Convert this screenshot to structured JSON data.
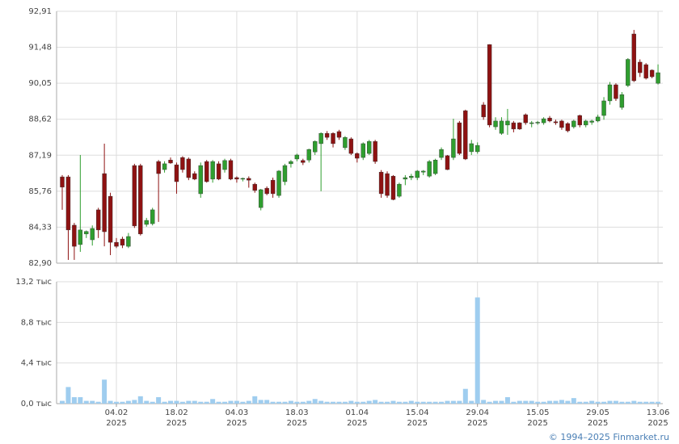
{
  "chart_data": [
    {
      "type": "candlestick",
      "up_color": "#2f9e2f",
      "down_color": "#8e1212",
      "grid": true,
      "ylim": [
        82.9,
        92.91
      ],
      "yticks": [
        {
          "value": 82.9,
          "label": "82,90"
        },
        {
          "value": 84.33,
          "label": "84,33"
        },
        {
          "value": 85.76,
          "label": "85,76"
        },
        {
          "value": 87.19,
          "label": "87,19"
        },
        {
          "value": 88.62,
          "label": "88,62"
        },
        {
          "value": 90.05,
          "label": "90,05"
        },
        {
          "value": 91.48,
          "label": "91,48"
        },
        {
          "value": 92.91,
          "label": "92,91"
        }
      ],
      "categories": [
        null,
        null,
        null,
        null,
        null,
        null,
        null,
        null,
        null,
        "04.02\n2025",
        null,
        null,
        null,
        null,
        null,
        null,
        null,
        null,
        null,
        "18.02\n2025",
        null,
        null,
        null,
        null,
        null,
        null,
        null,
        null,
        null,
        "04.03\n2025",
        null,
        null,
        null,
        null,
        null,
        null,
        null,
        null,
        null,
        "18.03\n2025",
        null,
        null,
        null,
        null,
        null,
        null,
        null,
        null,
        null,
        "01.04\n2025",
        null,
        null,
        null,
        null,
        null,
        null,
        null,
        null,
        null,
        "15.04\n2025",
        null,
        null,
        null,
        null,
        null,
        null,
        null,
        null,
        null,
        "29.04\n2025",
        null,
        null,
        null,
        null,
        null,
        null,
        null,
        null,
        null,
        "15.05\n2025",
        null,
        null,
        null,
        null,
        null,
        null,
        null,
        null,
        null,
        "29.05\n2025",
        null,
        null,
        null,
        null,
        null,
        null,
        null,
        null,
        null,
        "13.06\n2025"
      ],
      "open": [
        86.33,
        86.33,
        84.41,
        83.64,
        84.06,
        83.83,
        85.02,
        86.46,
        85.56,
        83.73,
        83.86,
        83.57,
        86.78,
        86.78,
        84.44,
        84.47,
        86.94,
        86.62,
        87.0,
        86.81,
        87.1,
        87.04,
        86.46,
        85.66,
        86.94,
        86.24,
        86.85,
        86.62,
        86.98,
        86.3,
        86.24,
        86.27,
        86.04,
        85.11,
        85.88,
        86.2,
        85.59,
        86.14,
        86.85,
        87.04,
        86.98,
        87.0,
        87.32,
        87.65,
        88.06,
        88.06,
        88.13,
        87.49,
        87.84,
        87.26,
        87.1,
        87.26,
        87.74,
        86.52,
        86.46,
        86.36,
        85.56,
        86.24,
        86.3,
        86.3,
        86.52,
        86.36,
        86.46,
        87.1,
        87.17,
        87.1,
        88.48,
        88.96,
        87.33,
        87.33,
        89.19,
        91.59,
        88.32,
        88.06,
        88.39,
        88.48,
        88.48,
        88.8,
        88.45,
        88.48,
        88.48,
        88.67,
        88.52,
        88.55,
        88.45,
        88.32,
        88.77,
        88.39,
        88.5,
        88.55,
        88.77,
        89.35,
        89.99,
        89.09,
        89.96,
        92.01,
        90.89,
        90.79,
        90.57,
        90.05
      ],
      "high": [
        86.4,
        86.4,
        84.5,
        87.2,
        84.2,
        84.4,
        85.1,
        87.65,
        85.7,
        83.9,
        83.95,
        84.1,
        86.85,
        86.85,
        84.7,
        85.1,
        87.0,
        86.95,
        87.1,
        86.9,
        87.15,
        87.1,
        86.55,
        86.9,
        87.0,
        87.0,
        86.95,
        87.05,
        87.05,
        86.35,
        86.3,
        86.35,
        86.1,
        85.85,
        85.95,
        86.3,
        86.6,
        86.85,
        87.0,
        87.25,
        87.05,
        87.45,
        87.78,
        88.1,
        88.15,
        88.1,
        88.2,
        87.95,
        87.9,
        87.3,
        87.7,
        87.8,
        87.8,
        86.6,
        86.55,
        86.4,
        86.1,
        86.4,
        86.45,
        86.6,
        86.6,
        87.0,
        87.05,
        87.5,
        87.2,
        88.64,
        88.55,
        89.0,
        87.8,
        87.7,
        89.3,
        91.6,
        88.7,
        88.7,
        89.03,
        88.55,
        88.5,
        88.85,
        88.55,
        88.55,
        88.7,
        88.75,
        88.6,
        88.6,
        88.5,
        88.6,
        88.8,
        88.6,
        88.6,
        88.8,
        89.5,
        90.1,
        90.05,
        89.7,
        91.05,
        92.17,
        91.0,
        90.85,
        90.6,
        90.8
      ],
      "low": [
        85.02,
        83.03,
        83.03,
        83.35,
        83.9,
        83.6,
        83.9,
        83.57,
        83.22,
        83.5,
        83.5,
        83.5,
        84.3,
        84.0,
        84.35,
        84.4,
        84.54,
        86.5,
        86.85,
        85.66,
        86.5,
        86.2,
        86.2,
        85.5,
        86.1,
        86.1,
        86.2,
        86.5,
        86.2,
        86.1,
        86.15,
        85.9,
        85.7,
        85.0,
        85.6,
        85.5,
        85.5,
        86.0,
        86.7,
        86.95,
        86.8,
        86.9,
        87.2,
        85.76,
        87.8,
        87.5,
        87.8,
        87.4,
        87.2,
        86.9,
        87.0,
        87.2,
        86.85,
        85.5,
        85.5,
        85.4,
        85.5,
        86.0,
        86.2,
        86.2,
        86.4,
        86.3,
        86.4,
        87.0,
        86.6,
        87.0,
        87.2,
        87.0,
        87.2,
        87.25,
        88.6,
        88.3,
        88.2,
        88.0,
        88.0,
        88.1,
        88.2,
        88.4,
        88.3,
        88.4,
        88.4,
        88.5,
        88.4,
        88.2,
        88.1,
        88.25,
        88.3,
        88.3,
        88.4,
        88.5,
        88.6,
        89.2,
        89.35,
        89.0,
        89.9,
        90.1,
        90.3,
        90.2,
        90.25,
        90.0
      ],
      "close": [
        85.92,
        84.22,
        83.57,
        84.22,
        84.16,
        84.28,
        84.22,
        84.15,
        83.73,
        83.57,
        83.61,
        83.96,
        84.38,
        84.06,
        84.6,
        85.02,
        86.46,
        86.85,
        86.88,
        86.14,
        86.62,
        86.3,
        86.24,
        86.78,
        86.14,
        86.94,
        86.24,
        86.98,
        86.24,
        86.24,
        86.27,
        86.2,
        85.79,
        85.82,
        85.66,
        85.66,
        86.56,
        86.78,
        86.94,
        87.2,
        86.9,
        87.42,
        87.74,
        88.06,
        87.9,
        87.65,
        87.9,
        87.9,
        87.26,
        87.07,
        87.65,
        87.74,
        86.94,
        85.66,
        85.59,
        85.43,
        86.04,
        86.3,
        86.36,
        86.56,
        86.56,
        86.94,
        87.0,
        87.42,
        86.62,
        87.84,
        87.26,
        87.04,
        87.65,
        87.58,
        88.71,
        88.39,
        88.55,
        88.55,
        88.55,
        88.23,
        88.23,
        88.48,
        88.48,
        88.5,
        88.64,
        88.55,
        88.48,
        88.29,
        88.16,
        88.55,
        88.39,
        88.55,
        88.55,
        88.71,
        89.35,
        89.99,
        89.44,
        89.6,
        91.0,
        90.15,
        90.47,
        90.25,
        90.31,
        90.47
      ]
    },
    {
      "type": "bar",
      "color": "#9fcdef",
      "grid": true,
      "ylim": [
        0,
        13.2
      ],
      "yticks": [
        {
          "value": 0,
          "label": "0,0 тыс"
        },
        {
          "value": 4.4,
          "label": "4,4 тыс"
        },
        {
          "value": 8.8,
          "label": "8,8 тыс"
        },
        {
          "value": 13.2,
          "label": "13,2 тыс"
        }
      ],
      "values": [
        0.3,
        1.8,
        0.7,
        0.7,
        0.3,
        0.3,
        0.2,
        2.6,
        0.3,
        0.2,
        0.2,
        0.3,
        0.4,
        0.8,
        0.3,
        0.2,
        0.7,
        0.2,
        0.3,
        0.3,
        0.2,
        0.3,
        0.3,
        0.2,
        0.2,
        0.5,
        0.2,
        0.2,
        0.3,
        0.3,
        0.2,
        0.3,
        0.8,
        0.4,
        0.4,
        0.2,
        0.2,
        0.2,
        0.3,
        0.2,
        0.2,
        0.3,
        0.5,
        0.3,
        0.2,
        0.2,
        0.2,
        0.2,
        0.3,
        0.2,
        0.2,
        0.3,
        0.4,
        0.2,
        0.2,
        0.3,
        0.2,
        0.2,
        0.3,
        0.2,
        0.2,
        0.2,
        0.2,
        0.2,
        0.3,
        0.3,
        0.3,
        1.6,
        0.3,
        11.5,
        0.4,
        0.2,
        0.3,
        0.3,
        0.7,
        0.2,
        0.3,
        0.3,
        0.3,
        0.2,
        0.2,
        0.3,
        0.3,
        0.4,
        0.3,
        0.6,
        0.2,
        0.2,
        0.3,
        0.2,
        0.2,
        0.3,
        0.3,
        0.2,
        0.2,
        0.3,
        0.2,
        0.2,
        0.2,
        0.2
      ]
    }
  ],
  "footer": "© 1994–2025 Finmarket.ru"
}
